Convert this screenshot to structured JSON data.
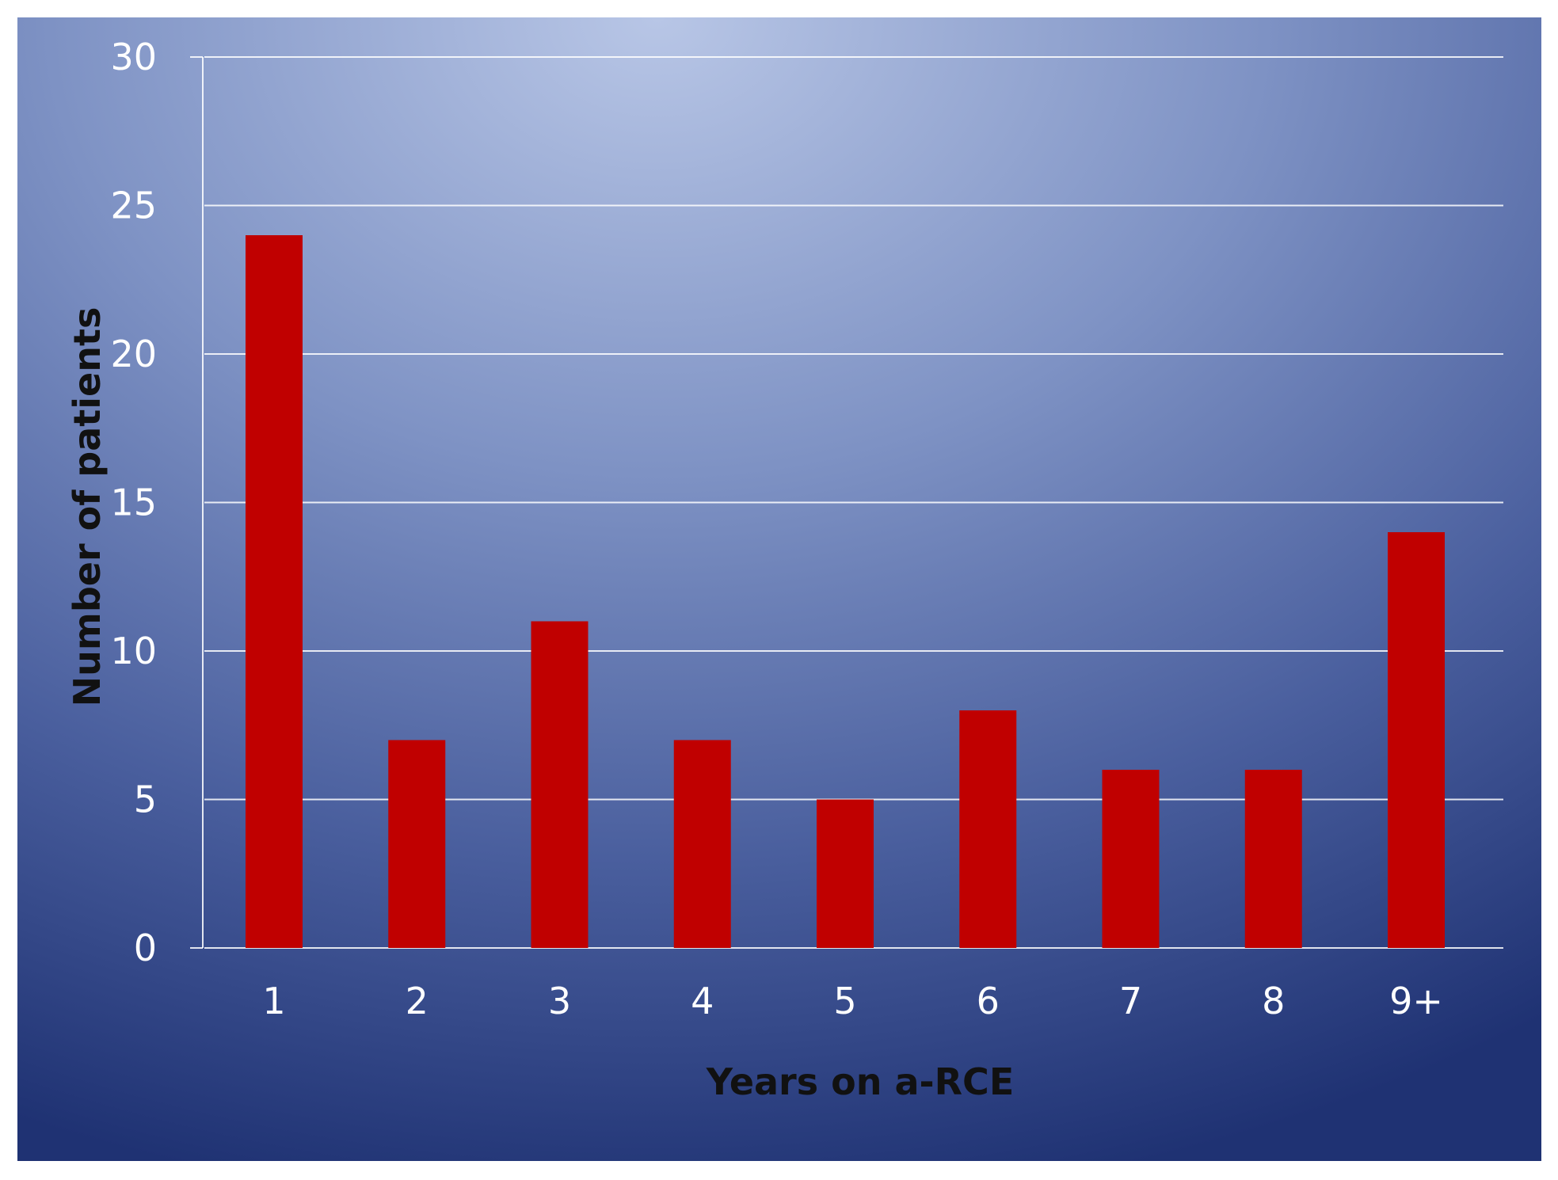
{
  "chart_data": {
    "type": "bar",
    "categories": [
      "1",
      "2",
      "3",
      "4",
      "5",
      "6",
      "7",
      "8",
      "9+"
    ],
    "values": [
      24,
      7,
      11,
      7,
      5,
      8,
      6,
      6,
      14
    ],
    "title": "",
    "xlabel": "Years on a-RCE",
    "ylabel": "Number of patients",
    "ylim": [
      0,
      30
    ],
    "yticks": [
      "0",
      "5",
      "10",
      "15",
      "20",
      "25",
      "30"
    ],
    "grid": true,
    "legend": "none",
    "bar_color": "#C00000",
    "background_colors": [
      "#B8C6E6",
      "#1F3273"
    ]
  }
}
